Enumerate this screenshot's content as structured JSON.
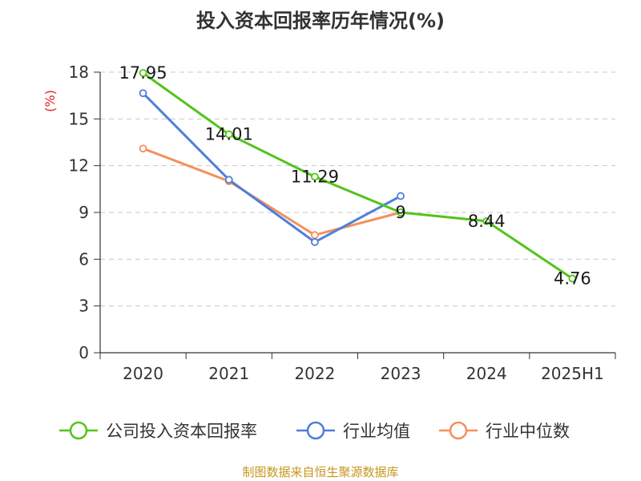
{
  "chart_data": {
    "type": "line",
    "title": "投入资本回报率历年情况(%)",
    "ylabel": "(%)",
    "xlabel": "",
    "ylim": [
      0,
      18
    ],
    "yticks": [
      0,
      3,
      6,
      9,
      12,
      15,
      18
    ],
    "categories": [
      "2020",
      "2021",
      "2022",
      "2023",
      "2024",
      "2025H1"
    ],
    "grid": true,
    "legend_position": "bottom",
    "series": [
      {
        "name": "公司投入资本回报率",
        "color": "#52c41a",
        "values": [
          17.95,
          14.01,
          11.29,
          9,
          8.44,
          4.76
        ],
        "labels": [
          "17.95",
          "14.01",
          "11.29",
          "9",
          "8.44",
          "4.76"
        ]
      },
      {
        "name": "行业均值",
        "color": "#4f7fd8",
        "values": [
          16.65,
          11.1,
          7.1,
          10.05,
          null,
          null
        ]
      },
      {
        "name": "行业中位数",
        "color": "#f4905a",
        "values": [
          13.1,
          11.0,
          7.55,
          9.0,
          null,
          null
        ]
      }
    ]
  },
  "ylabel_color": "#e02020",
  "source_color": "#c8961e",
  "source": "制图数据来自恒生聚源数据库"
}
